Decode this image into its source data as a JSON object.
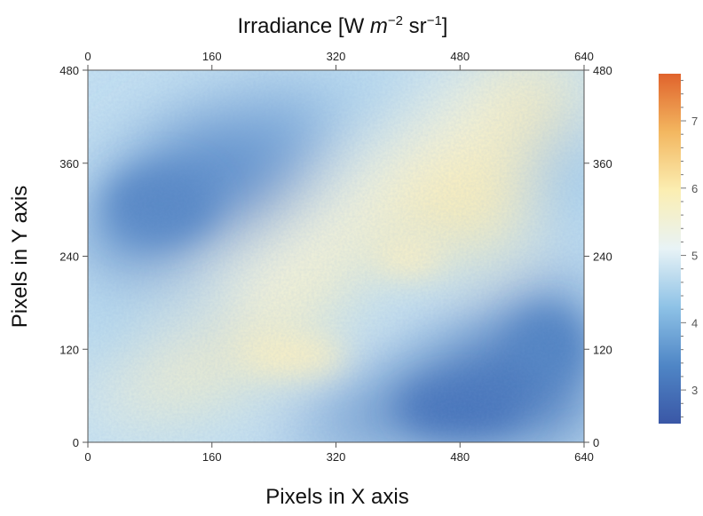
{
  "chart_data": {
    "type": "heatmap",
    "title": "Irradiance [W m⁻² sr⁻¹]",
    "title_parts": {
      "prefix": "Irradiance [W ",
      "m": "m",
      "m_exp": "−2",
      "sr": " sr",
      "sr_exp": "−1",
      "suffix": "]"
    },
    "xlabel": "Pixels in X axis",
    "ylabel": "Pixels in Y axis",
    "xlim": [
      0,
      640
    ],
    "ylim": [
      0,
      480
    ],
    "x_ticks": [
      0,
      160,
      320,
      480,
      640
    ],
    "y_ticks": [
      0,
      120,
      240,
      360,
      480
    ],
    "colorbar": {
      "range": [
        2.5,
        7.7
      ],
      "ticks": [
        3,
        4,
        5,
        6,
        7
      ],
      "colors": [
        "#3a57a6",
        "#4f86c6",
        "#8ec2e6",
        "#e8f3f6",
        "#fbeeb2",
        "#f3b760",
        "#e0632c"
      ]
    },
    "value_regions": [
      {
        "description": "dark blue upper-left band",
        "center": [
          140,
          330
        ],
        "value": 3.4
      },
      {
        "description": "pale yellow diagonal band",
        "center": [
          380,
          180
        ],
        "value": 5.8
      },
      {
        "description": "yellow upper-right",
        "center": [
          500,
          330
        ],
        "value": 5.9
      },
      {
        "description": "dark blue lower-right",
        "center": [
          560,
          80
        ],
        "value": 3.3
      },
      {
        "description": "light blue lower-left",
        "center": [
          60,
          120
        ],
        "value": 4.8
      },
      {
        "description": "cyan right edge",
        "center": [
          620,
          360
        ],
        "value": 4.3
      }
    ]
  }
}
